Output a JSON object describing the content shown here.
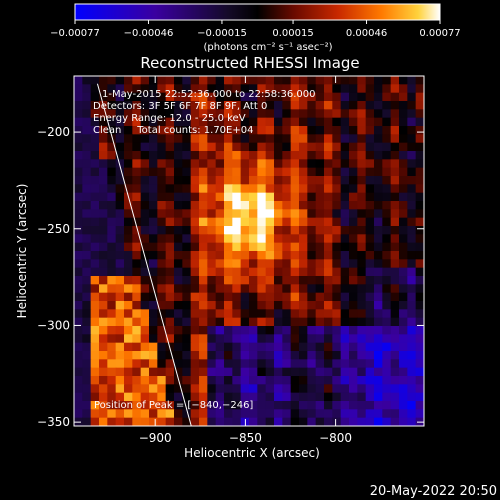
{
  "chart_data": {
    "type": "heatmap",
    "title": "Reconstructed RHESSI Image",
    "xlabel": "Heliocentric X (arcsec)",
    "ylabel": "Heliocentric Y (arcsec)",
    "xlim": [
      -945,
      -850
    ],
    "ylim": [
      -352,
      -171
    ],
    "x_ticks": [
      -900,
      -850,
      -800
    ],
    "x_tick_labels": [
      "−900",
      "−850",
      "−800"
    ],
    "y_ticks": [
      -200,
      -250,
      -300,
      -350
    ],
    "y_tick_labels": [
      "−200",
      "−250",
      "−300",
      "−350"
    ],
    "colorbar": {
      "range": [
        -0.00077,
        0.00077
      ],
      "tick_values": [
        -0.00077,
        -0.00046,
        -0.00015,
        0.00015,
        0.00046,
        0.00077
      ],
      "tick_labels": [
        "−0.00077",
        "−0.00046",
        "−0.00015",
        "0.00015",
        "0.00046",
        "0.00077"
      ],
      "units_label": "(photons cm⁻² s⁻¹ asec⁻²)",
      "colormap": [
        "#0000ff",
        "#3a00a0",
        "#140a28",
        "#000000",
        "#5a0a00",
        "#c82800",
        "#ff7a00",
        "#ffd23c",
        "#ffffff"
      ]
    },
    "annotations": [
      "1-May-2015 22:52:36.000 to 22:58:36.000",
      "Detectors: 3F 5F 6F 7F 8F 9F, Att 0",
      "Energy Range: 12.0 - 25.0 keV",
      "Clean     Total counts: 1.70E+04",
      "Position of Peak = [−840,−246]"
    ],
    "peak_position": [
      -840,
      -246
    ],
    "limb_line": [
      [
        -932,
        -175
      ],
      [
        -880,
        -352
      ]
    ]
  },
  "footer": {
    "timestamp": "20-May-2022 20:50"
  }
}
